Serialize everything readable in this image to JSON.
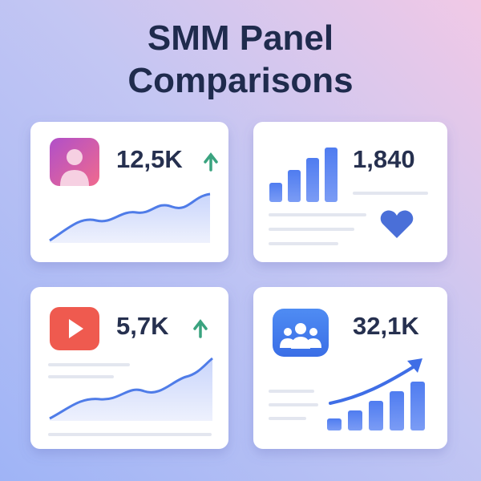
{
  "header": {
    "title_lines": [
      "SMM Panel",
      "Comparisons"
    ]
  },
  "cards": [
    {
      "stat": "12,5K"
    },
    {
      "stat": "1,840"
    },
    {
      "stat": "5,7K"
    },
    {
      "stat": "32,1K"
    }
  ]
}
